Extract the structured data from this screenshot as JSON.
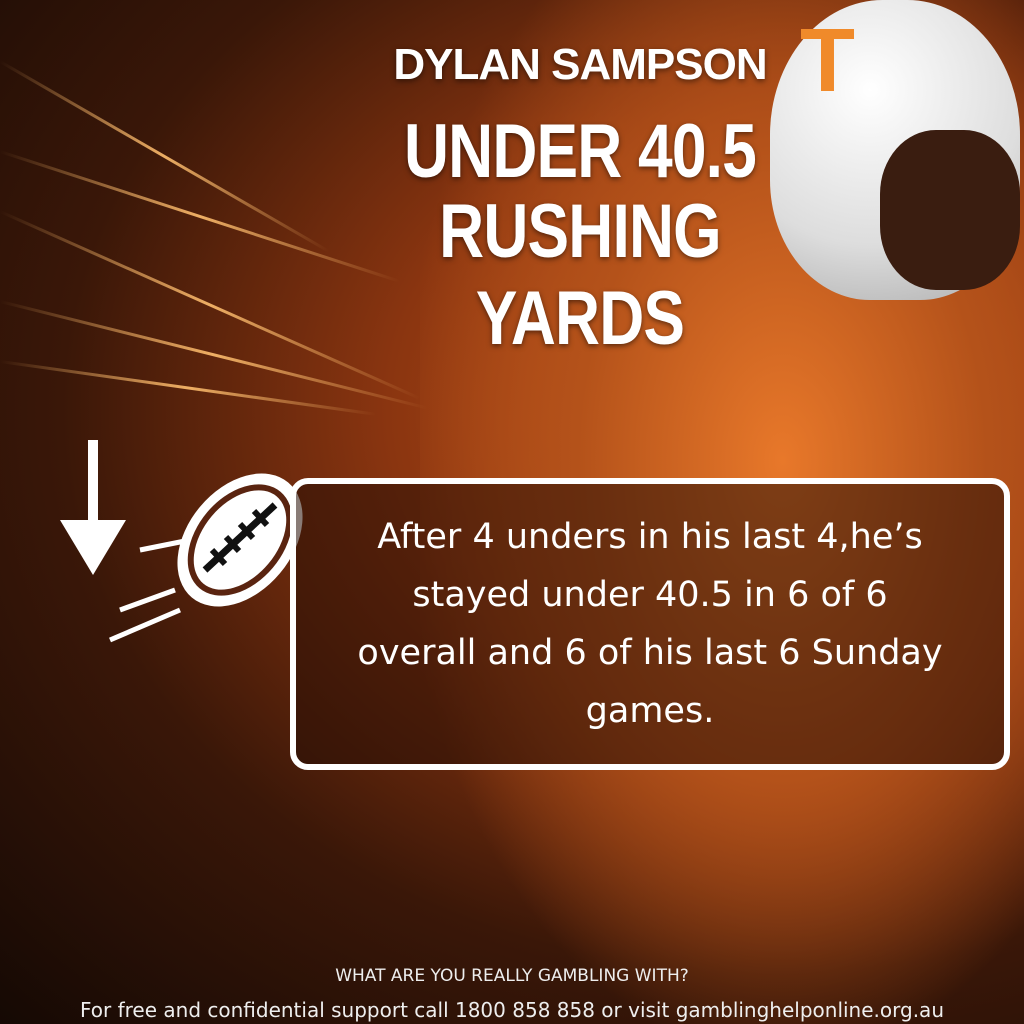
{
  "header": {
    "player_name": "DYLAN SAMPSON",
    "line1": "UNDER 40.5",
    "line2": "RUSHING YARDS"
  },
  "stat_box": {
    "text": "After 4 unders in his last 4,he’s stayed under 40.5 in 6 of 6 overall and 6 of his last 6 Sunday games."
  },
  "icons": [
    "down-arrow-icon",
    "football-icon"
  ],
  "footer": {
    "tagline": "WHAT ARE YOU REALLY GAMBLING WITH?",
    "support": "For free and confidential support call 1800 858 858 or visit gamblinghelponline.org.au"
  },
  "colors": {
    "accent": "#e8782a",
    "background": "#3a1708"
  }
}
